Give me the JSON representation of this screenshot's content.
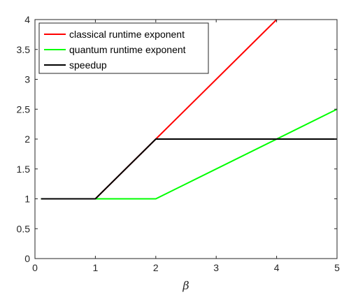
{
  "chart_data": {
    "type": "line",
    "title": "",
    "xlabel": "β",
    "ylabel": "",
    "xlim": [
      0,
      5
    ],
    "ylim": [
      0,
      4
    ],
    "xticks": [
      "0",
      "1",
      "2",
      "3",
      "4",
      "5"
    ],
    "yticks": [
      "0",
      "0.5",
      "1",
      "1.5",
      "2",
      "2.5",
      "3",
      "3.5",
      "4"
    ],
    "grid": false,
    "legend_position": "top-left",
    "series": [
      {
        "name": "classical runtime exponent",
        "color": "#ff0000",
        "x": [
          0.1,
          1,
          2,
          4
        ],
        "y": [
          1,
          1,
          2,
          4
        ]
      },
      {
        "name": "quantum runtime exponent",
        "color": "#00ff00",
        "x": [
          0.1,
          2,
          5
        ],
        "y": [
          1,
          1,
          2.5
        ]
      },
      {
        "name": "speedup",
        "color": "#000000",
        "x": [
          0.1,
          1,
          2,
          5
        ],
        "y": [
          1,
          1,
          2,
          2
        ]
      }
    ]
  }
}
